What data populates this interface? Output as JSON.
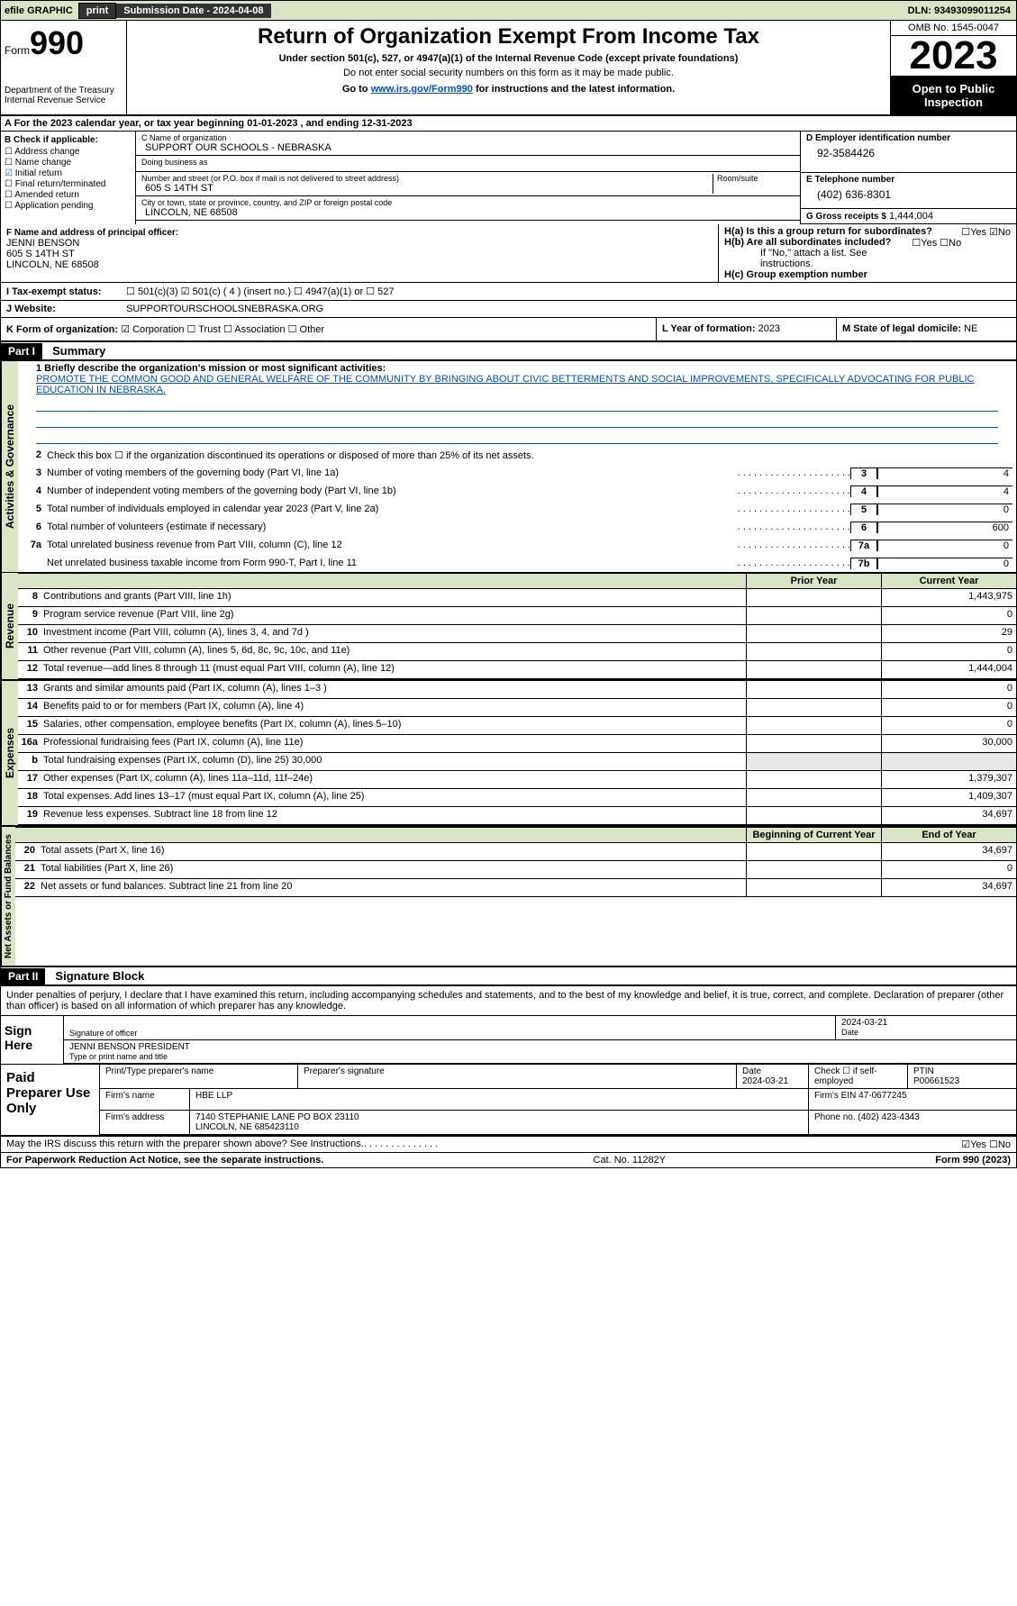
{
  "topbar": {
    "efile": "efile GRAPHIC",
    "print": "print",
    "submission": "Submission Date - 2024-04-08",
    "dln": "DLN: 93493099011254"
  },
  "header": {
    "form_prefix": "Form",
    "form_num": "990",
    "dept": "Department of the Treasury Internal Revenue Service",
    "title": "Return of Organization Exempt From Income Tax",
    "sub1": "Under section 501(c), 527, or 4947(a)(1) of the Internal Revenue Code (except private foundations)",
    "sub2": "Do not enter social security numbers on this form as it may be made public.",
    "sub3_pre": "Go to ",
    "sub3_link": "www.irs.gov/Form990",
    "sub3_post": " for instructions and the latest information.",
    "omb": "OMB No. 1545-0047",
    "year": "2023",
    "open": "Open to Public Inspection"
  },
  "rowA": "A For the 2023 calendar year, or tax year beginning 01-01-2023    , and ending 12-31-2023",
  "boxB": {
    "hdr": "B Check if applicable:",
    "items": [
      "Address change",
      "Name change",
      "Initial return",
      "Final return/terminated",
      "Amended return",
      "Application pending"
    ],
    "checked": [
      false,
      false,
      true,
      false,
      false,
      false
    ]
  },
  "boxC": {
    "name_lbl": "C Name of organization",
    "name": "SUPPORT OUR SCHOOLS - NEBRASKA",
    "dba_lbl": "Doing business as",
    "dba": "",
    "street_lbl": "Number and street (or P.O. box if mail is not delivered to street address)",
    "street": "605 S 14TH ST",
    "suite_lbl": "Room/suite",
    "city_lbl": "City or town, state or province, country, and ZIP or foreign postal code",
    "city": "LINCOLN, NE  68508"
  },
  "boxD": {
    "lbl": "D Employer identification number",
    "val": "92-3584426"
  },
  "boxE": {
    "lbl": "E Telephone number",
    "val": "(402) 636-8301"
  },
  "boxG": {
    "lbl": "G Gross receipts $",
    "val": "1,444,004"
  },
  "boxF": {
    "lbl": "F  Name and address of principal officer:",
    "name": "JENNI BENSON",
    "addr1": "605 S 14TH ST",
    "addr2": "LINCOLN, NE  68508"
  },
  "boxH": {
    "a": "H(a)  Is this a group return for subordinates?",
    "a_ans": "☐Yes  ☑No",
    "b": "H(b)  Are all subordinates included?",
    "b_ans": "☐Yes  ☐No",
    "b_note": "If \"No,\" attach a list. See instructions.",
    "c": "H(c)  Group exemption number"
  },
  "rowI": {
    "lbl": "I   Tax-exempt status:",
    "opts": "☐ 501(c)(3)   ☑ 501(c) ( 4 ) (insert no.)     ☐ 4947(a)(1) or   ☐ 527"
  },
  "rowJ": {
    "lbl": "J   Website:",
    "val": "SUPPORTOURSCHOOLSNEBRASKA.ORG"
  },
  "rowK": {
    "lbl": "K Form of organization:",
    "opts": "☑ Corporation  ☐ Trust  ☐ Association  ☐ Other"
  },
  "rowL": {
    "lbl": "L Year of formation:",
    "val": "2023"
  },
  "rowM": {
    "lbl": "M State of legal domicile:",
    "val": "NE"
  },
  "part1": {
    "hdr": "Part I",
    "title": "Summary"
  },
  "summary": {
    "q1_lbl": "1  Briefly describe the organization's mission or most significant activities:",
    "q1_txt": "PROMOTE THE COMMON GOOD AND GENERAL WELFARE OF THE COMMUNITY BY BRINGING ABOUT CIVIC BETTERMENTS AND SOCIAL IMPROVEMENTS, SPECIFICALLY ADVOCATING FOR PUBLIC EDUCATION IN NEBRASKA.",
    "q2": "Check this box ☐ if the organization discontinued its operations or disposed of more than 25% of its net assets.",
    "rows_ag": [
      {
        "n": "3",
        "t": "Number of voting members of the governing body (Part VI, line 1a)",
        "b": "3",
        "v": "4"
      },
      {
        "n": "4",
        "t": "Number of independent voting members of the governing body (Part VI, line 1b)",
        "b": "4",
        "v": "4"
      },
      {
        "n": "5",
        "t": "Total number of individuals employed in calendar year 2023 (Part V, line 2a)",
        "b": "5",
        "v": "0"
      },
      {
        "n": "6",
        "t": "Total number of volunteers (estimate if necessary)",
        "b": "6",
        "v": "600"
      },
      {
        "n": "7a",
        "t": "Total unrelated business revenue from Part VIII, column (C), line 12",
        "b": "7a",
        "v": "0"
      },
      {
        "n": "",
        "t": "Net unrelated business taxable income from Form 990-T, Part I, line 11",
        "b": "7b",
        "v": "0"
      }
    ],
    "hdr_prior": "Prior Year",
    "hdr_curr": "Current Year",
    "rev": [
      {
        "n": "8",
        "t": "Contributions and grants (Part VIII, line 1h)",
        "p": "",
        "c": "1,443,975"
      },
      {
        "n": "9",
        "t": "Program service revenue (Part VIII, line 2g)",
        "p": "",
        "c": "0"
      },
      {
        "n": "10",
        "t": "Investment income (Part VIII, column (A), lines 3, 4, and 7d )",
        "p": "",
        "c": "29"
      },
      {
        "n": "11",
        "t": "Other revenue (Part VIII, column (A), lines 5, 6d, 8c, 9c, 10c, and 11e)",
        "p": "",
        "c": "0"
      },
      {
        "n": "12",
        "t": "Total revenue—add lines 8 through 11 (must equal Part VIII, column (A), line 12)",
        "p": "",
        "c": "1,444,004"
      }
    ],
    "exp": [
      {
        "n": "13",
        "t": "Grants and similar amounts paid (Part IX, column (A), lines 1–3 )",
        "p": "",
        "c": "0"
      },
      {
        "n": "14",
        "t": "Benefits paid to or for members (Part IX, column (A), line 4)",
        "p": "",
        "c": "0"
      },
      {
        "n": "15",
        "t": "Salaries, other compensation, employee benefits (Part IX, column (A), lines 5–10)",
        "p": "",
        "c": "0"
      },
      {
        "n": "16a",
        "t": "Professional fundraising fees (Part IX, column (A), line 11e)",
        "p": "",
        "c": "30,000"
      },
      {
        "n": "b",
        "t": "Total fundraising expenses (Part IX, column (D), line 25) 30,000",
        "p": "blank",
        "c": "blank"
      },
      {
        "n": "17",
        "t": "Other expenses (Part IX, column (A), lines 11a–11d, 11f–24e)",
        "p": "",
        "c": "1,379,307"
      },
      {
        "n": "18",
        "t": "Total expenses. Add lines 13–17 (must equal Part IX, column (A), line 25)",
        "p": "",
        "c": "1,409,307"
      },
      {
        "n": "19",
        "t": "Revenue less expenses. Subtract line 18 from line 12",
        "p": "",
        "c": "34,697"
      }
    ],
    "hdr_boy": "Beginning of Current Year",
    "hdr_eoy": "End of Year",
    "net": [
      {
        "n": "20",
        "t": "Total assets (Part X, line 16)",
        "p": "",
        "c": "34,697"
      },
      {
        "n": "21",
        "t": "Total liabilities (Part X, line 26)",
        "p": "",
        "c": "0"
      },
      {
        "n": "22",
        "t": "Net assets or fund balances. Subtract line 21 from line 20",
        "p": "",
        "c": "34,697"
      }
    ],
    "vert_ag": "Activities & Governance",
    "vert_rev": "Revenue",
    "vert_exp": "Expenses",
    "vert_net": "Net Assets or Fund Balances"
  },
  "part2": {
    "hdr": "Part II",
    "title": "Signature Block"
  },
  "perjury": "Under penalties of perjury, I declare that I have examined this return, including accompanying schedules and statements, and to the best of my knowledge and belief, it is true, correct, and complete. Declaration of preparer (other than officer) is based on all information of which preparer has any knowledge.",
  "sign": {
    "lbl": "Sign Here",
    "sig_lbl": "Signature of officer",
    "date": "2024-03-21",
    "date_lbl": "Date",
    "name": "JENNI BENSON  PRESIDENT",
    "name_lbl": "Type or print name and title"
  },
  "paid": {
    "lbl": "Paid Preparer Use Only",
    "h_name": "Print/Type preparer's name",
    "h_sig": "Preparer's signature",
    "h_date": "Date",
    "date": "2024-03-21",
    "check": "Check ☐ if self-employed",
    "ptin_lbl": "PTIN",
    "ptin": "P00661523",
    "firm_lbl": "Firm's name",
    "firm": "HBE LLP",
    "ein_lbl": "Firm's EIN",
    "ein": "47-0677245",
    "addr_lbl": "Firm's address",
    "addr": "7140 STEPHANIE LANE PO BOX 23110",
    "addr2": "LINCOLN, NE  685423110",
    "phone_lbl": "Phone no.",
    "phone": "(402) 423-4343"
  },
  "discuss": {
    "txt": "May the IRS discuss this return with the preparer shown above? See Instructions.",
    "ans": "☑Yes  ☐No"
  },
  "footer": {
    "pra": "For Paperwork Reduction Act Notice, see the separate instructions.",
    "cat": "Cat. No. 11282Y",
    "form": "Form 990 (2023)"
  }
}
